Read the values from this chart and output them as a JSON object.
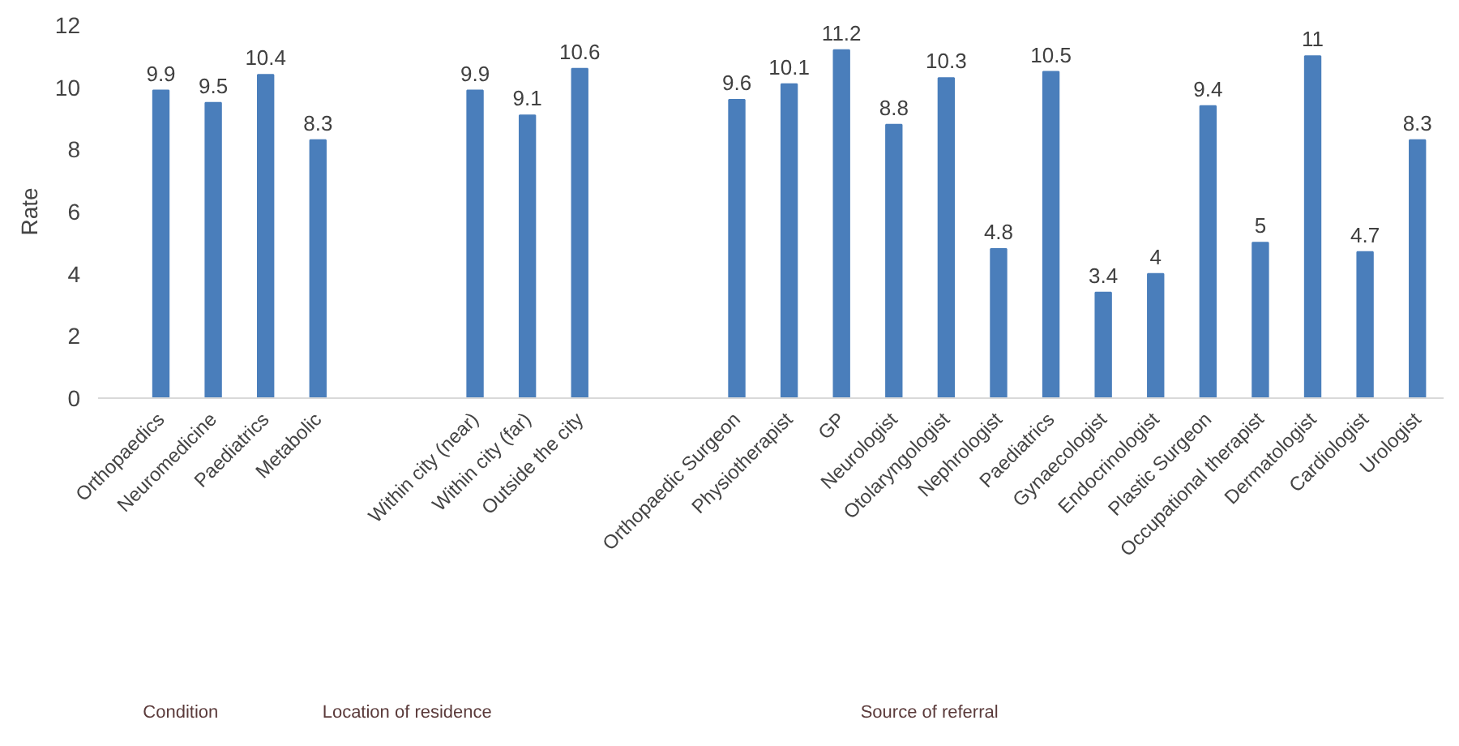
{
  "chart_data": {
    "type": "bar",
    "ylabel": "Rate",
    "categories": [
      "Orthopaedics",
      "Neuromedicine",
      "Paediatrics",
      "Metabolic",
      null,
      null,
      "Within city (near)",
      "Within city (far)",
      "Outside the city",
      null,
      null,
      "Orthopaedic Surgeon",
      "Physiotherapist",
      "GP",
      "Neurologist",
      "Otolaryngologist",
      "Nephrologist",
      "Paediatrics",
      "Gynaecologist",
      "Endocrinologist",
      "Plastic Surgeon",
      "Occupational therapist",
      "Dermatologist",
      "Cardiologist",
      "Urologist"
    ],
    "values": [
      9.9,
      9.5,
      10.4,
      8.3,
      null,
      null,
      9.9,
      9.1,
      10.6,
      null,
      null,
      9.6,
      10.1,
      11.2,
      8.8,
      10.3,
      4.8,
      10.5,
      3.4,
      4,
      9.4,
      5,
      11,
      4.7,
      8.3
    ],
    "color": "#4a7ebb",
    "ylim": [
      0,
      12
    ],
    "yticks": [
      0,
      2,
      4,
      6,
      8,
      10,
      12
    ],
    "grid": false,
    "data_labels": true,
    "annotations": [
      "Condition",
      "Location of residence",
      "Source of referral"
    ]
  }
}
